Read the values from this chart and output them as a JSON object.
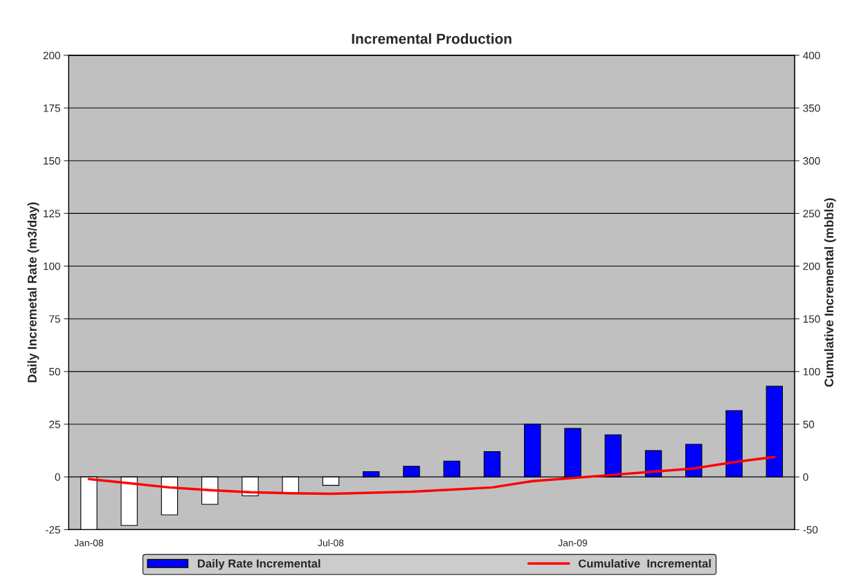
{
  "chart_data": {
    "type": "bar",
    "title": "Incremental Production",
    "ylabel": "Daily Incremetal Rate (m3/day)",
    "y2label": "Cumulative Incremental (mbbls)",
    "categories": [
      "Jan-08",
      null,
      null,
      null,
      null,
      null,
      "Jul-08",
      null,
      null,
      null,
      null,
      null,
      "Jan-09",
      null,
      null,
      null,
      null,
      null
    ],
    "series": [
      {
        "name": "Daily Rate Incremental",
        "color": "#0000ff",
        "colors": [
          "#ffffff",
          "#ffffff",
          "#ffffff",
          "#ffffff",
          "#ffffff",
          "#ffffff",
          "#ffffff",
          "#0000ff",
          "#0000ff",
          "#0000ff",
          "#0000ff",
          "#0000ff",
          "#0000ff",
          "#0000ff",
          "#0000ff",
          "#0000ff",
          "#0000ff",
          "#0000ff"
        ],
        "values": [
          -25,
          -23,
          -18,
          -13,
          -9,
          -7.5,
          -4,
          2.5,
          5,
          7.5,
          12,
          25,
          23,
          20,
          12.5,
          15.5,
          31.5,
          43
        ]
      },
      {
        "name": "Cumulative  Incremental",
        "type": "line",
        "axis": "y2",
        "color": "#ff0000",
        "values": [
          -2,
          -6,
          -10,
          -12.5,
          -14.5,
          -15.5,
          -16,
          -15,
          -14,
          -12,
          -10,
          -4,
          -1,
          2,
          5,
          8,
          14,
          19
        ]
      }
    ],
    "ylim": [
      -25,
      200
    ],
    "yticks": [
      -25,
      0,
      25,
      50,
      75,
      100,
      125,
      150,
      175,
      200
    ],
    "y2lim": [
      -50,
      400
    ],
    "y2ticks": [
      -50,
      0,
      50,
      100,
      150,
      200,
      250,
      300,
      350,
      400
    ],
    "grid": "y",
    "legend": "bottom",
    "marker": "none",
    "line_style": "solid"
  }
}
